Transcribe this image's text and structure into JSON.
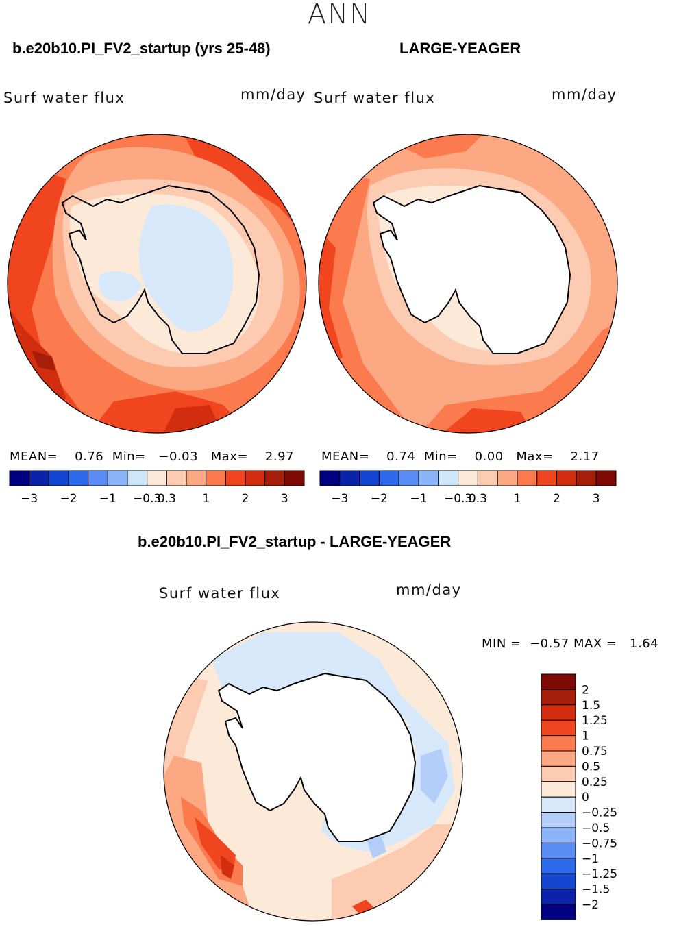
{
  "season": "ANN",
  "panels": [
    {
      "title": "b.e20b10.PI_FV2_startup (yrs 25-48)",
      "variable": "Surf water flux",
      "units": "mm/day",
      "stats": {
        "mean_label": "MEAN=",
        "mean": "0.76",
        "min_label": "Min=",
        "min": "−0.03",
        "max_label": "Max=",
        "max": "2.97"
      }
    },
    {
      "title": "LARGE-YEAGER",
      "variable": "Surf water flux",
      "units": "mm/day",
      "stats": {
        "mean_label": "MEAN=",
        "mean": "0.74",
        "min_label": "Min=",
        "min": "0.00",
        "max_label": "Max=",
        "max": "2.17"
      }
    }
  ],
  "top_colorbar": {
    "colors": [
      "#000080",
      "#0a23a8",
      "#1446d2",
      "#2d69eb",
      "#5a8cf5",
      "#8cb4fa",
      "#cde6fa",
      "#fde9d8",
      "#fccbb1",
      "#fca882",
      "#fb7a4e",
      "#f0451e",
      "#d22d0f",
      "#a51e0a",
      "#7d0a05"
    ],
    "tick_labels": [
      "−3",
      "−2",
      "−1",
      "−0.3",
      "0.3",
      "1",
      "2",
      "3"
    ]
  },
  "diff": {
    "title": "b.e20b10.PI_FV2_startup - LARGE-YEAGER",
    "variable": "Surf water flux",
    "units": "mm/day",
    "min_label": "MIN =",
    "min": "−0.57",
    "max_label": "MAX =",
    "max": "1.64"
  },
  "diff_colorbar": {
    "colors": [
      "#7d0a05",
      "#a51e0a",
      "#d22d0f",
      "#f0451e",
      "#fb7a4e",
      "#fca882",
      "#fccbb1",
      "#fde9d8",
      "#d6e8fa",
      "#b4cefa",
      "#8cb4fa",
      "#5a8cf5",
      "#2d69eb",
      "#1446d2",
      "#0a23a8",
      "#000080"
    ],
    "tick_labels": [
      "2",
      "1.5",
      "1.25",
      "1",
      "0.75",
      "0.5",
      "0.25",
      "0",
      "−0.25",
      "−0.5",
      "−0.75",
      "−1",
      "−1.25",
      "−1.5",
      "−2"
    ]
  },
  "map_colors": {
    "land": "#ffffff",
    "coast": "#000000",
    "c_neg_light": "#d6e8fa",
    "c_neg_mid": "#b4cefa",
    "c_neg_dark": "#8cb4fa",
    "c_0": "#fde9d8",
    "c_1": "#fccbb1",
    "c_2": "#fca882",
    "c_3": "#fb7a4e",
    "c_4": "#f0451e",
    "c_5": "#d22d0f",
    "c_6": "#a51e0a"
  }
}
